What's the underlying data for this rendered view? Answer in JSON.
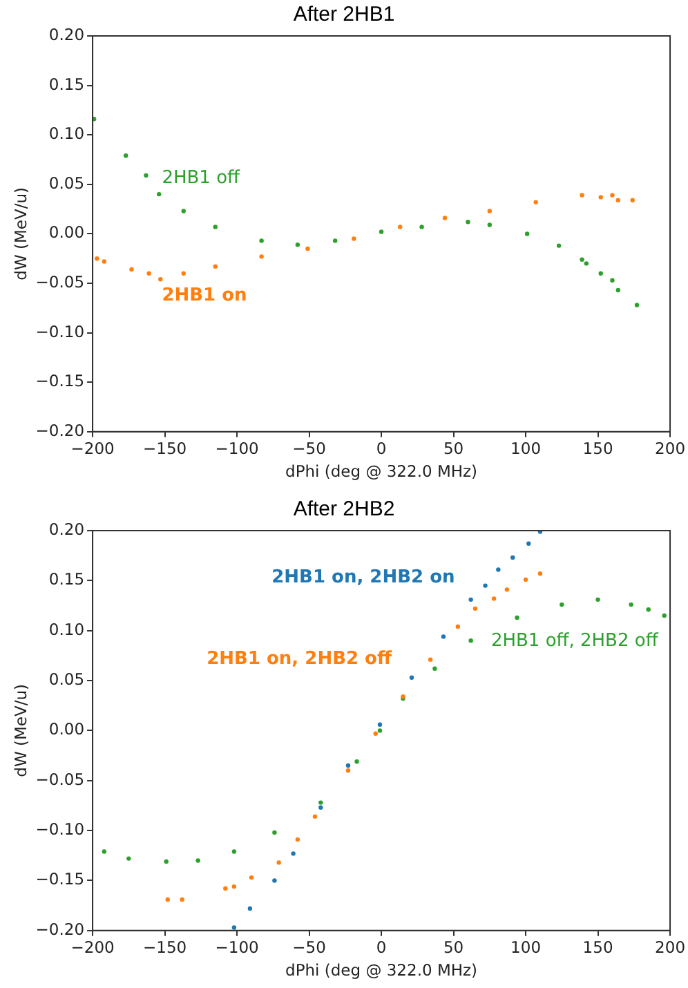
{
  "chart_data": [
    {
      "type": "scatter",
      "title": "After 2HB1",
      "xlabel": "dPhi (deg @ 322.0 MHz)",
      "ylabel": "dW (MeV/u)",
      "xlim": [
        -200,
        200
      ],
      "ylim": [
        -0.2,
        0.2
      ],
      "xticks": [
        {
          "value": -200,
          "label": "−200"
        },
        {
          "value": -150,
          "label": "−150"
        },
        {
          "value": -100,
          "label": "−100"
        },
        {
          "value": -50,
          "label": "−50"
        },
        0,
        50,
        100,
        150,
        200
      ],
      "yticks": [
        {
          "value": -0.2,
          "label": "−0.20"
        },
        {
          "value": -0.15,
          "label": "−0.15"
        },
        {
          "value": -0.1,
          "label": "−0.10"
        },
        {
          "value": -0.05,
          "label": "−0.05"
        },
        {
          "value": 0,
          "label": "0.00"
        },
        {
          "value": 0.05,
          "label": "0.05"
        },
        {
          "value": 0.1,
          "label": "0.10"
        },
        {
          "value": 0.15,
          "label": "0.15"
        },
        {
          "value": 0.2,
          "label": "0.20"
        }
      ],
      "grid": false,
      "legend": false,
      "marker": "circle",
      "series": [
        {
          "name": "2HB1 off",
          "color": "#2ca02c",
          "x": [
            -199,
            -177,
            -163,
            -154,
            -137,
            -115,
            -83,
            -58,
            -32,
            0,
            28,
            60,
            75,
            101,
            123,
            139,
            142,
            152,
            160,
            164,
            177
          ],
          "values": [
            0.116,
            0.079,
            0.059,
            0.04,
            0.023,
            0.007,
            -0.007,
            -0.011,
            -0.007,
            0.002,
            0.007,
            0.012,
            0.009,
            0.0,
            -0.012,
            -0.026,
            -0.03,
            -0.04,
            -0.047,
            -0.057,
            -0.072
          ]
        },
        {
          "name": "2HB1 on",
          "color": "#ff7f0e",
          "x": [
            -197,
            -192,
            -173,
            -161,
            -153,
            -137,
            -115,
            -83,
            -51,
            -19,
            13,
            44,
            75,
            107,
            139,
            152,
            160,
            164,
            174
          ],
          "values": [
            -0.025,
            -0.028,
            -0.036,
            -0.04,
            -0.046,
            -0.04,
            -0.033,
            -0.023,
            -0.015,
            -0.005,
            0.007,
            0.016,
            0.023,
            0.032,
            0.039,
            0.037,
            0.039,
            0.034,
            0.034
          ]
        }
      ]
    },
    {
      "type": "scatter",
      "title": "After 2HB2",
      "xlabel": "dPhi (deg @ 322.0 MHz)",
      "ylabel": "dW (MeV/u)",
      "xlim": [
        -200,
        200
      ],
      "ylim": [
        -0.2,
        0.2
      ],
      "xticks": [
        {
          "value": -200,
          "label": "−200"
        },
        {
          "value": -150,
          "label": "−150"
        },
        {
          "value": -100,
          "label": "−100"
        },
        {
          "value": -50,
          "label": "−50"
        },
        0,
        50,
        100,
        150,
        200
      ],
      "yticks": [
        {
          "value": -0.2,
          "label": "−0.20"
        },
        {
          "value": -0.15,
          "label": "−0.15"
        },
        {
          "value": -0.1,
          "label": "−0.10"
        },
        {
          "value": -0.05,
          "label": "−0.05"
        },
        {
          "value": 0,
          "label": "0.00"
        },
        {
          "value": 0.05,
          "label": "0.05"
        },
        {
          "value": 0.1,
          "label": "0.10"
        },
        {
          "value": 0.15,
          "label": "0.15"
        },
        {
          "value": 0.2,
          "label": "0.20"
        }
      ],
      "grid": false,
      "legend": false,
      "marker": "circle",
      "series": [
        {
          "name": "2HB1 on, 2HB2 on",
          "color": "#1f77b4",
          "x": [
            -102,
            -91,
            -74,
            -61,
            -42,
            -23,
            -1,
            21,
            43,
            62,
            72,
            81,
            91,
            102,
            110
          ],
          "values": [
            -0.197,
            -0.178,
            -0.15,
            -0.123,
            -0.077,
            -0.035,
            0.006,
            0.053,
            0.094,
            0.131,
            0.145,
            0.161,
            0.173,
            0.187,
            0.199
          ]
        },
        {
          "name": "2HB1 on, 2HB2 off",
          "color": "#ff7f0e",
          "x": [
            -148,
            -138,
            -108,
            -102,
            -90,
            -71,
            -58,
            -46,
            -23,
            -4,
            15,
            34,
            53,
            65,
            78,
            87,
            100,
            110
          ],
          "values": [
            -0.169,
            -0.169,
            -0.158,
            -0.156,
            -0.147,
            -0.132,
            -0.109,
            -0.086,
            -0.04,
            -0.003,
            0.034,
            0.071,
            0.104,
            0.122,
            0.132,
            0.141,
            0.151,
            0.157
          ]
        },
        {
          "name": "2HB1 off, 2HB2 off",
          "color": "#2ca02c",
          "x": [
            -192,
            -175,
            -149,
            -127,
            -102,
            -74,
            -42,
            -17,
            -1,
            15,
            37,
            62,
            94,
            125,
            150,
            173,
            185,
            196
          ],
          "values": [
            -0.121,
            -0.128,
            -0.131,
            -0.13,
            -0.121,
            -0.102,
            -0.072,
            -0.031,
            0.0,
            0.032,
            0.062,
            0.09,
            0.113,
            0.126,
            0.131,
            0.126,
            0.121,
            0.115
          ]
        }
      ]
    }
  ]
}
